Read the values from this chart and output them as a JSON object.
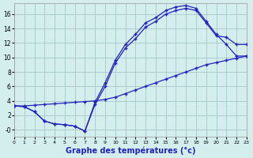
{
  "title": "Graphe des températures (°c)",
  "background_color": "#d4eeee",
  "grid_color": "#aacccc",
  "line_color": "#2222bb",
  "line1": {
    "x": [
      0,
      1,
      2,
      3,
      4,
      5,
      6,
      7,
      8,
      9,
      10,
      11,
      12,
      13,
      14,
      15,
      16,
      17,
      18,
      19,
      20,
      21,
      22,
      23
    ],
    "y": [
      3.3,
      3.2,
      2.5,
      1.2,
      0.8,
      0.7,
      0.5,
      -0.2,
      3.8,
      6.5,
      9.6,
      11.8,
      13.2,
      14.8,
      15.5,
      16.5,
      17.0,
      17.2,
      16.8,
      15.0,
      13.2,
      11.8,
      10.2,
      10.2
    ]
  },
  "line2": {
    "x": [
      0,
      1,
      2,
      3,
      4,
      5,
      6,
      7,
      8,
      9,
      10,
      11,
      12,
      13,
      14,
      15,
      16,
      17,
      18,
      19,
      20,
      21,
      22,
      23
    ],
    "y": [
      3.3,
      3.2,
      2.5,
      1.2,
      0.8,
      0.7,
      0.5,
      -0.2,
      3.5,
      6.0,
      9.2,
      11.3,
      12.6,
      14.2,
      15.0,
      16.0,
      16.5,
      16.8,
      16.5,
      14.8,
      13.0,
      12.8,
      11.8,
      11.8
    ]
  },
  "line3": {
    "x": [
      0,
      1,
      2,
      3,
      4,
      5,
      6,
      7,
      8,
      9,
      10,
      11,
      12,
      13,
      14,
      15,
      16,
      17,
      18,
      19,
      20,
      21,
      22,
      23
    ],
    "y": [
      3.3,
      3.3,
      3.4,
      3.5,
      3.6,
      3.7,
      3.8,
      3.9,
      4.0,
      4.2,
      4.5,
      5.0,
      5.5,
      6.0,
      6.5,
      7.0,
      7.5,
      8.0,
      8.5,
      9.0,
      9.3,
      9.6,
      9.9,
      10.2
    ]
  },
  "xlim": [
    0,
    23
  ],
  "ylim": [
    -1.0,
    17.5
  ],
  "xticks": [
    0,
    1,
    2,
    3,
    4,
    5,
    6,
    7,
    8,
    9,
    10,
    11,
    12,
    13,
    14,
    15,
    16,
    17,
    18,
    19,
    20,
    21,
    22,
    23
  ],
  "yticks": [
    0,
    2,
    4,
    6,
    8,
    10,
    12,
    14,
    16
  ],
  "ytick_labels": [
    "-0",
    "2",
    "4",
    "6",
    "8",
    "10",
    "12",
    "14",
    "16"
  ],
  "marker": "+",
  "markersize": 3.5,
  "linewidth": 0.9
}
